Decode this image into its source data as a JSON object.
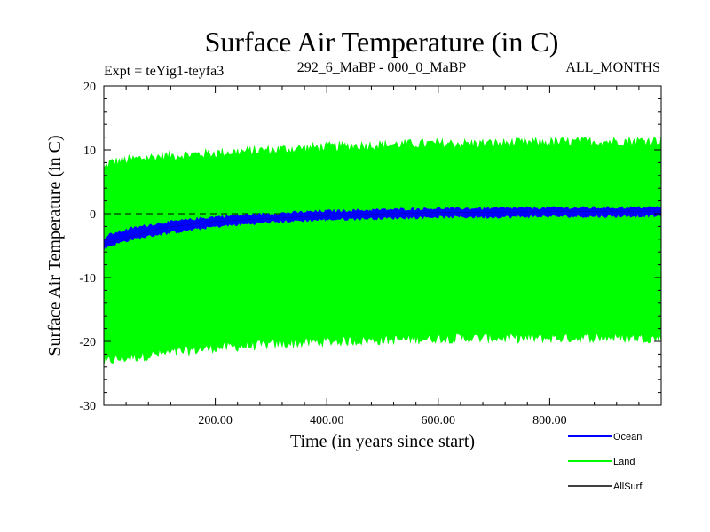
{
  "chart_data": {
    "type": "area",
    "title": "Surface Air Temperature (in C)",
    "subtitle_left": "Expt = teYig1-teyfa3",
    "subtitle_center": "292_6_MaBP - 000_0_MaBP",
    "subtitle_right": "ALL_MONTHS",
    "xlabel": "Time (in years since start)",
    "ylabel": "Surface Air Temperature (in C)",
    "xlim": [
      0,
      1000
    ],
    "ylim": [
      -30,
      20
    ],
    "x_ticks": [
      200,
      400,
      600,
      800
    ],
    "x_tick_labels": [
      "200.00",
      "400.00",
      "600.00",
      "800.00"
    ],
    "y_ticks": [
      -30,
      -20,
      -10,
      0,
      10,
      20
    ],
    "y_tick_labels": [
      "-30",
      "-20",
      "-10",
      "0",
      "10",
      "20"
    ],
    "zero_line": {
      "y": 0,
      "style": "dashed"
    },
    "series": [
      {
        "name": "Land",
        "color": "#00ff00",
        "x": [
          0,
          10,
          50,
          100,
          200,
          300,
          400,
          500,
          600,
          700,
          800,
          900,
          1000
        ],
        "max": [
          7,
          8,
          8.5,
          9,
          9.5,
          10,
          10.5,
          10.8,
          11,
          11,
          11.2,
          11.3,
          11.5
        ],
        "min": [
          -23.5,
          -23,
          -22.5,
          -22,
          -21,
          -20.5,
          -20,
          -19.8,
          -19.5,
          -19.5,
          -19.5,
          -19.4,
          -19.5
        ]
      },
      {
        "name": "Ocean",
        "color": "#0000ff",
        "x": [
          0,
          10,
          50,
          100,
          200,
          300,
          400,
          500,
          600,
          700,
          800,
          900,
          1000
        ],
        "max": [
          -4,
          -3.3,
          -2.3,
          -1.5,
          -0.5,
          0,
          0.4,
          0.6,
          0.8,
          0.8,
          0.9,
          0.9,
          1.0
        ],
        "min": [
          -5.5,
          -5,
          -4,
          -3.2,
          -2,
          -1.3,
          -0.9,
          -0.7,
          -0.5,
          -0.5,
          -0.4,
          -0.4,
          -0.3
        ]
      },
      {
        "name": "AllSurf",
        "color": "#000000",
        "x": [
          0,
          100,
          200,
          400,
          600,
          800,
          1000
        ],
        "mid": [
          -4.7,
          -2.3,
          -1.2,
          -0.3,
          0.2,
          0.3,
          0.4
        ]
      }
    ],
    "legend": {
      "placement": "bottom-right",
      "entries": [
        {
          "name": "Ocean",
          "color": "#0000ff"
        },
        {
          "name": "Land",
          "color": "#00ff00"
        },
        {
          "name": "AllSurf",
          "color": "#000000"
        }
      ]
    }
  }
}
